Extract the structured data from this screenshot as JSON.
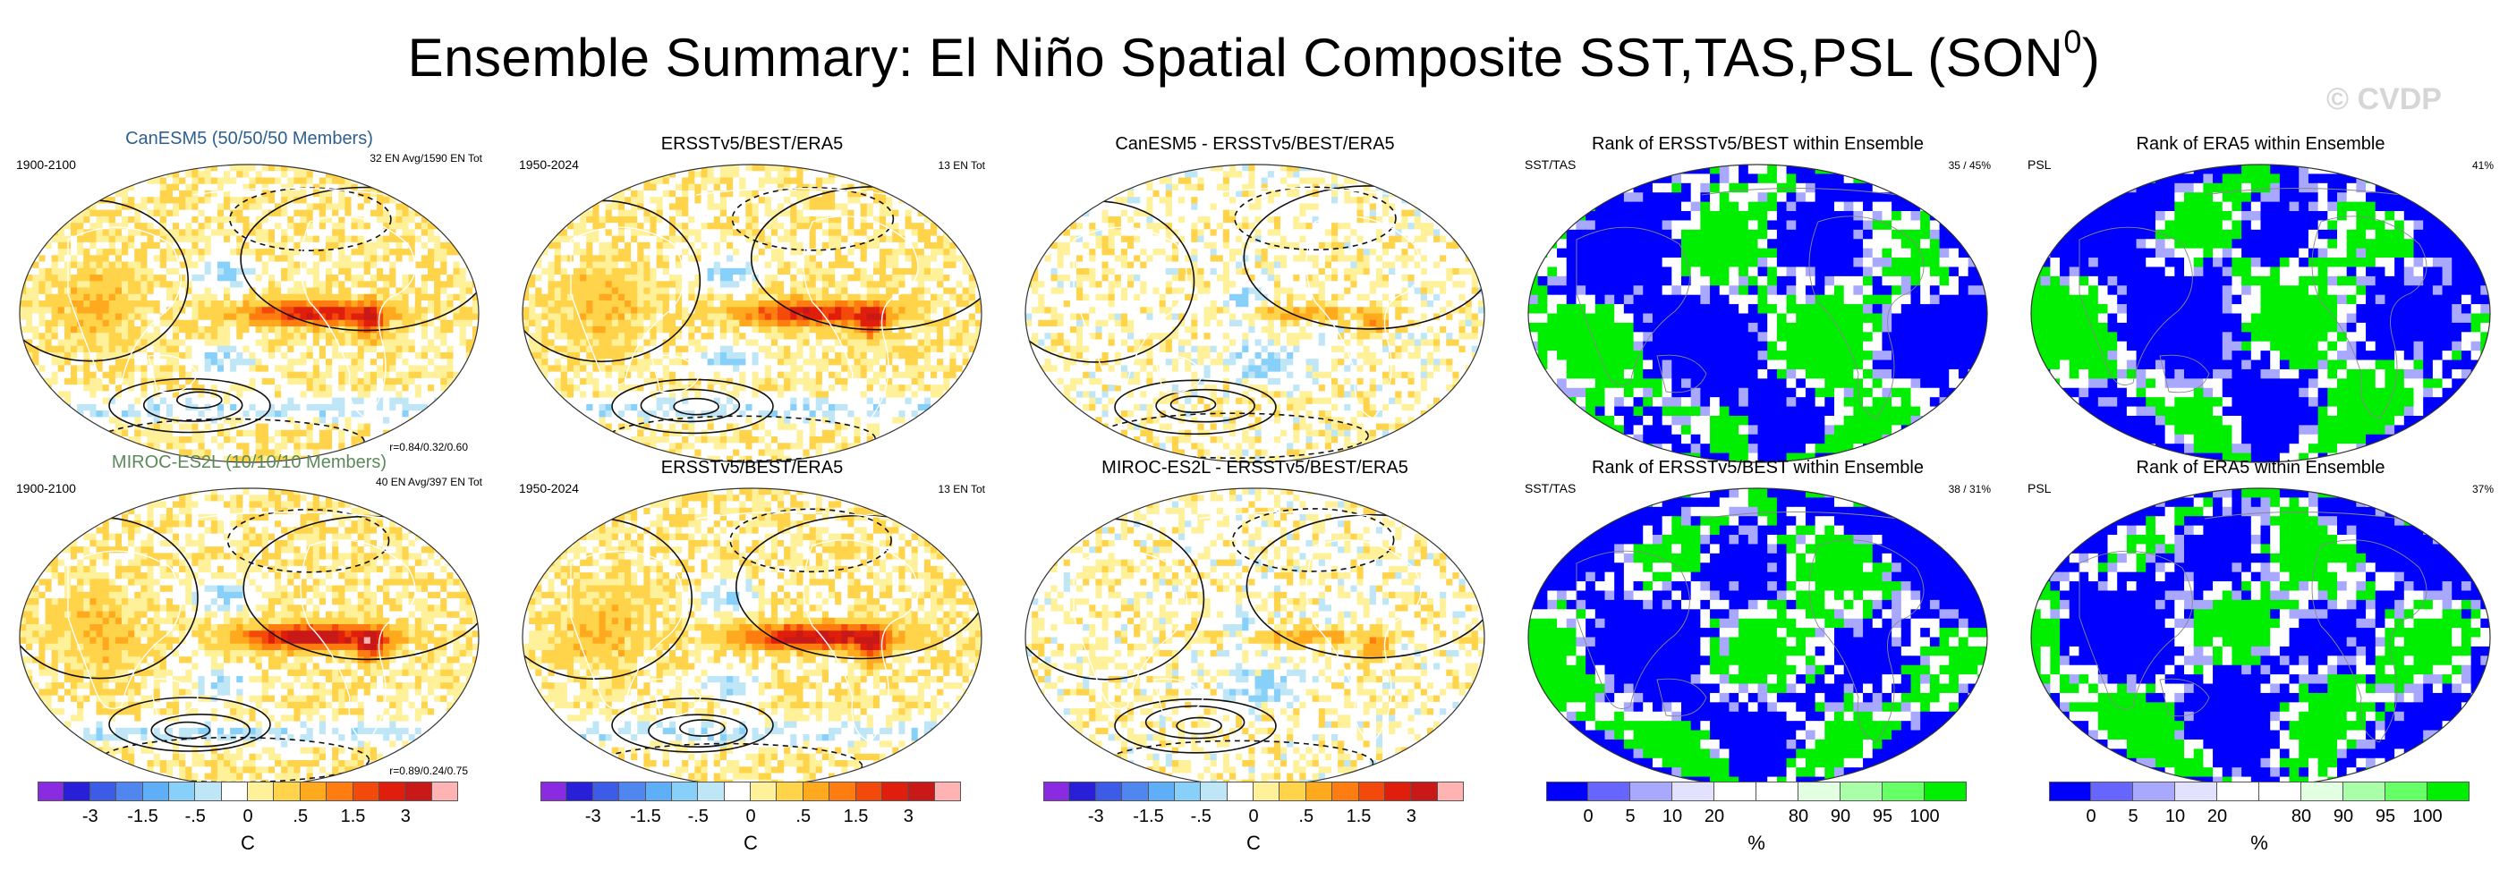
{
  "title": "Ensemble Summary: El Niño Spatial Composite SST,TAS,PSL (SON",
  "title_sup": "0",
  "title_close": ")",
  "watermark": "© CVDP",
  "panels": [
    {
      "title": "CanESM5 (50/50/50 Members)",
      "title_color": "#2e5f8f",
      "left_label": "1900-2100",
      "right_label": "32 EN Avg/1590 EN Tot",
      "bottom_label": "r=0.84/0.32/0.60",
      "map": "comp"
    },
    {
      "title": "ERSSTv5/BEST/ERA5",
      "title_color": "#000000",
      "left_label": "1950-2024",
      "right_label": "13 EN Tot",
      "bottom_label": "",
      "map": "comp"
    },
    {
      "title": "CanESM5 - ERSSTv5/BEST/ERA5",
      "title_color": "#000000",
      "left_label": "",
      "right_label": "",
      "bottom_label": "",
      "map": "diff"
    },
    {
      "title": "Rank of ERSSTv5/BEST within Ensemble",
      "title_color": "#000000",
      "left_label": "SST/TAS",
      "right_label": "35 /  45%",
      "bottom_label": "",
      "map": "rank"
    },
    {
      "title": "Rank of ERA5 within Ensemble",
      "title_color": "#000000",
      "left_label": "PSL",
      "right_label": "41%",
      "bottom_label": "",
      "map": "rank"
    },
    {
      "title": "MIROC-ES2L (10/10/10 Members)",
      "title_color": "#5a8a5a",
      "left_label": "1900-2100",
      "right_label": "40 EN Avg/397 EN Tot",
      "bottom_label": "r=0.89/0.24/0.75",
      "map": "comp"
    },
    {
      "title": "ERSSTv5/BEST/ERA5",
      "title_color": "#000000",
      "left_label": "1950-2024",
      "right_label": "13 EN Tot",
      "bottom_label": "",
      "map": "comp"
    },
    {
      "title": "MIROC-ES2L - ERSSTv5/BEST/ERA5",
      "title_color": "#000000",
      "left_label": "",
      "right_label": "",
      "bottom_label": "",
      "map": "diff"
    },
    {
      "title": "Rank of ERSSTv5/BEST within Ensemble",
      "title_color": "#000000",
      "left_label": "SST/TAS",
      "right_label": "38 /  31%",
      "bottom_label": "",
      "map": "rank"
    },
    {
      "title": "Rank of ERA5 within Ensemble",
      "title_color": "#000000",
      "left_label": "PSL",
      "right_label": "37%",
      "bottom_label": "",
      "map": "rank"
    }
  ],
  "colorbars": [
    {
      "kind": "temp",
      "ticks": [
        "-3",
        "-1.5",
        "-.5",
        "0",
        ".5",
        "1.5",
        "3"
      ],
      "unit": "C"
    },
    {
      "kind": "temp",
      "ticks": [
        "-3",
        "-1.5",
        "-.5",
        "0",
        ".5",
        "1.5",
        "3"
      ],
      "unit": "C"
    },
    {
      "kind": "temp",
      "ticks": [
        "-3",
        "-1.5",
        "-.5",
        "0",
        ".5",
        "1.5",
        "3"
      ],
      "unit": "C"
    },
    {
      "kind": "rank",
      "ticks": [
        "0",
        "5",
        "10",
        "20",
        "80",
        "90",
        "95",
        "100"
      ],
      "unit": "%"
    },
    {
      "kind": "rank",
      "ticks": [
        "0",
        "5",
        "10",
        "20",
        "80",
        "90",
        "95",
        "100"
      ],
      "unit": "%"
    }
  ],
  "temp_colors": [
    "#8a2be2",
    "#2a1fd8",
    "#3c5be6",
    "#4f86f0",
    "#5eaef8",
    "#86d0fa",
    "#bfe6f6",
    "#ffffff",
    "#fff09a",
    "#ffd34a",
    "#ffa91e",
    "#ff7d10",
    "#f34a0c",
    "#e01e0c",
    "#c81818",
    "#ffb3b3"
  ],
  "rank_colors": [
    "#0000ff",
    "#6666ff",
    "#a8a8ff",
    "#e2e2ff",
    "#ffffff",
    "#ffffff",
    "#e2ffe2",
    "#a8ffa8",
    "#66ff66",
    "#00ee00"
  ],
  "chart_data": {
    "type": "heatmap",
    "description_title": "Ensemble Summary: El Niño Spatial Composite SST,TAS,PSL (SON0)",
    "temperature_scale": {
      "unit": "C",
      "ticks": [
        -3,
        -1.5,
        -0.5,
        0,
        0.5,
        1.5,
        3
      ]
    },
    "rank_scale": {
      "unit": "%",
      "ticks": [
        0,
        5,
        10,
        20,
        80,
        90,
        95,
        100
      ]
    },
    "pattern_correlations": [
      {
        "model": "CanESM5",
        "members": [
          50,
          50,
          50
        ],
        "period": "1900-2100",
        "r": [
          0.84,
          0.32,
          0.6
        ],
        "en_avg": 32,
        "en_tot": 1590
      },
      {
        "model": "MIROC-ES2L",
        "members": [
          10,
          10,
          10
        ],
        "period": "1900-2100",
        "r": [
          0.89,
          0.24,
          0.75
        ],
        "en_avg": 40,
        "en_tot": 397
      }
    ],
    "observations": {
      "name": "ERSSTv5/BEST/ERA5",
      "period": "1950-2024",
      "en_tot": 13
    },
    "rank_percent": [
      {
        "model": "CanESM5",
        "sst_tas": [
          35,
          45
        ],
        "psl": 41
      },
      {
        "model": "MIROC-ES2L",
        "sst_tas": [
          38,
          31
        ],
        "psl": 37
      }
    ]
  }
}
